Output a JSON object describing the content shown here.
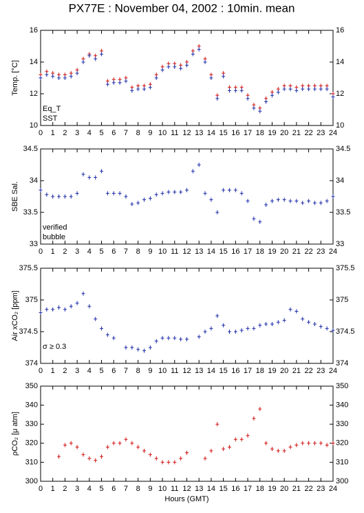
{
  "title": "PX77E : November 04, 2002 : 10min. mean",
  "chart_data": [
    {
      "type": "scatter",
      "ylabel": "Temp. [°C]",
      "ylim": [
        10,
        16
      ],
      "yticks": [
        10,
        12,
        14,
        16
      ],
      "xlim": [
        0,
        24
      ],
      "xticks": [
        0,
        1,
        2,
        3,
        4,
        5,
        6,
        7,
        8,
        9,
        10,
        11,
        12,
        13,
        14,
        15,
        16,
        17,
        18,
        19,
        20,
        21,
        22,
        23,
        24
      ],
      "legend": "lower left",
      "x": [
        0,
        0.5,
        1,
        1.5,
        2,
        2.5,
        3,
        3.5,
        4,
        4.5,
        5,
        5.5,
        6,
        6.5,
        7,
        7.5,
        8,
        8.5,
        9,
        9.5,
        10,
        10.5,
        11,
        11.5,
        12,
        12.5,
        13,
        13.5,
        14,
        14.5,
        15,
        15.5,
        16,
        16.5,
        17,
        17.5,
        18,
        18.5,
        19,
        19.5,
        20,
        20.5,
        21,
        21.5,
        22,
        22.5,
        23,
        23.5,
        24
      ],
      "series": [
        {
          "name": "Eq_T",
          "color": "#d01010",
          "values": [
            13.2,
            13.4,
            13.3,
            13.2,
            13.2,
            13.3,
            13.5,
            14.2,
            14.5,
            14.4,
            14.7,
            12.8,
            12.9,
            12.9,
            13.0,
            12.4,
            12.5,
            12.5,
            12.6,
            13.2,
            13.7,
            13.9,
            13.9,
            13.8,
            14.0,
            14.7,
            15.0,
            14.2,
            13.2,
            11.9,
            13.3,
            12.4,
            12.4,
            12.4,
            11.9,
            11.3,
            11.1,
            11.7,
            12.1,
            12.3,
            12.5,
            12.5,
            12.4,
            12.5,
            12.5,
            12.5,
            12.5,
            12.5,
            12.0
          ]
        },
        {
          "name": "SST",
          "color": "#1a2aa8",
          "values": [
            13.0,
            13.2,
            13.1,
            13.0,
            13.0,
            13.1,
            13.3,
            14.0,
            14.4,
            14.2,
            14.5,
            12.6,
            12.7,
            12.7,
            12.8,
            12.2,
            12.3,
            12.3,
            12.4,
            13.0,
            13.5,
            13.7,
            13.7,
            13.6,
            13.8,
            14.5,
            14.8,
            14.0,
            13.0,
            11.7,
            13.1,
            12.2,
            12.2,
            12.2,
            11.7,
            11.1,
            10.9,
            11.5,
            11.9,
            12.1,
            12.3,
            12.3,
            12.2,
            12.3,
            12.3,
            12.3,
            12.3,
            12.3,
            11.8
          ]
        }
      ]
    },
    {
      "type": "scatter",
      "ylabel": "SBE Sal.",
      "ylim": [
        33,
        34.5
      ],
      "yticks": [
        33,
        33.5,
        34,
        34.5
      ],
      "xlim": [
        0,
        24
      ],
      "xticks": [
        0,
        1,
        2,
        3,
        4,
        5,
        6,
        7,
        8,
        9,
        10,
        11,
        12,
        13,
        14,
        15,
        16,
        17,
        18,
        19,
        20,
        21,
        22,
        23,
        24
      ],
      "legend": "lower left",
      "x": [
        0,
        0.5,
        1,
        1.5,
        2,
        2.5,
        3,
        3.5,
        4,
        4.5,
        5,
        5.5,
        6,
        6.5,
        7,
        7.5,
        8,
        8.5,
        9,
        9.5,
        10,
        10.5,
        11,
        11.5,
        12,
        12.5,
        13,
        13.5,
        14,
        14.5,
        15,
        15.5,
        16,
        16.5,
        17,
        17.5,
        18,
        18.5,
        19,
        19.5,
        20,
        20.5,
        21,
        21.5,
        22,
        22.5,
        23,
        23.5,
        24
      ],
      "series": [
        {
          "name": "verified",
          "color": "#1a2aa8",
          "values": [
            33.85,
            33.78,
            33.75,
            33.75,
            33.75,
            33.75,
            33.8,
            34.1,
            34.05,
            34.05,
            34.15,
            33.8,
            33.8,
            33.8,
            33.75,
            33.63,
            33.65,
            33.7,
            33.72,
            33.78,
            33.8,
            33.82,
            33.82,
            33.82,
            33.85,
            34.15,
            34.25,
            33.8,
            33.7,
            33.5,
            33.85,
            33.85,
            33.85,
            33.8,
            33.68,
            33.4,
            33.35,
            33.62,
            33.68,
            33.7,
            33.7,
            33.68,
            33.68,
            33.65,
            33.68,
            33.65,
            33.65,
            33.68,
            33.75
          ]
        },
        {
          "name": "bubble",
          "color": "#cc22cc",
          "values": [
            null,
            null,
            null,
            null,
            null,
            null,
            null,
            null,
            null,
            null,
            null,
            null,
            null,
            null,
            null,
            null,
            null,
            null,
            null,
            null,
            null,
            null,
            null,
            null,
            null,
            null,
            null,
            null,
            null,
            null,
            null,
            null,
            null,
            null,
            null,
            null,
            null,
            null,
            null,
            null,
            null,
            null,
            null,
            null,
            null,
            null,
            null,
            null,
            null
          ]
        }
      ]
    },
    {
      "type": "scatter",
      "ylabel": "Air xCO₂ [ppm]",
      "ylim": [
        374,
        375.5
      ],
      "yticks": [
        374,
        374.5,
        375,
        375.5
      ],
      "xlim": [
        0,
        24
      ],
      "xticks": [
        0,
        1,
        2,
        3,
        4,
        5,
        6,
        7,
        8,
        9,
        10,
        11,
        12,
        13,
        14,
        15,
        16,
        17,
        18,
        19,
        20,
        21,
        22,
        23,
        24
      ],
      "annotation": "σ ≥ 0.3",
      "annotation_color": "#cc22cc",
      "x": [
        0,
        0.5,
        1,
        1.5,
        2,
        2.5,
        3,
        3.5,
        4,
        4.5,
        5,
        5.5,
        6,
        6.5,
        7,
        7.5,
        8,
        8.5,
        9,
        9.5,
        10,
        10.5,
        11,
        11.5,
        12,
        12.5,
        13,
        13.5,
        14,
        14.5,
        15,
        15.5,
        16,
        16.5,
        17,
        17.5,
        18,
        18.5,
        19,
        19.5,
        20,
        20.5,
        21,
        21.5,
        22,
        22.5,
        23,
        23.5,
        24
      ],
      "series": [
        {
          "color": "#1a2aa8",
          "values": [
            374.8,
            374.85,
            374.85,
            374.88,
            374.85,
            374.9,
            374.95,
            375.1,
            374.9,
            374.7,
            374.55,
            374.45,
            374.4,
            null,
            374.25,
            374.25,
            374.22,
            374.2,
            374.25,
            374.35,
            374.4,
            374.4,
            374.4,
            374.38,
            374.38,
            null,
            374.42,
            374.5,
            374.55,
            374.75,
            374.6,
            374.5,
            374.5,
            374.52,
            374.55,
            374.55,
            374.6,
            374.62,
            374.62,
            374.65,
            374.68,
            374.85,
            374.82,
            374.7,
            374.65,
            374.62,
            374.58,
            374.55,
            374.52
          ]
        }
      ]
    },
    {
      "type": "scatter",
      "ylabel": "ρCO₂ [μ atm]",
      "xlabel": "Hours (GMT)",
      "ylim": [
        300,
        350
      ],
      "yticks": [
        300,
        310,
        320,
        330,
        340,
        350
      ],
      "xlim": [
        0,
        24
      ],
      "xticks": [
        0,
        1,
        2,
        3,
        4,
        5,
        6,
        7,
        8,
        9,
        10,
        11,
        12,
        13,
        14,
        15,
        16,
        17,
        18,
        19,
        20,
        21,
        22,
        23,
        24
      ],
      "x": [
        0,
        0.5,
        1,
        1.5,
        2,
        2.5,
        3,
        3.5,
        4,
        4.5,
        5,
        5.5,
        6,
        6.5,
        7,
        7.5,
        8,
        8.5,
        9,
        9.5,
        10,
        10.5,
        11,
        11.5,
        12,
        12.5,
        13,
        13.5,
        14,
        14.5,
        15,
        15.5,
        16,
        16.5,
        17,
        17.5,
        18,
        18.5,
        19,
        19.5,
        20,
        20.5,
        21,
        21.5,
        22,
        22.5,
        23,
        23.5,
        24
      ],
      "series": [
        {
          "color": "#d01010",
          "values": [
            null,
            null,
            null,
            313,
            319,
            320,
            318,
            314,
            312,
            311,
            313,
            318,
            320,
            320,
            322,
            320,
            318,
            316,
            314,
            312,
            310,
            310,
            310,
            312,
            315,
            null,
            null,
            312,
            316,
            330,
            317,
            318,
            322,
            322,
            324,
            333,
            338,
            320,
            317,
            316,
            316,
            318,
            319,
            320,
            320,
            320,
            320,
            319,
            320
          ]
        }
      ]
    }
  ]
}
